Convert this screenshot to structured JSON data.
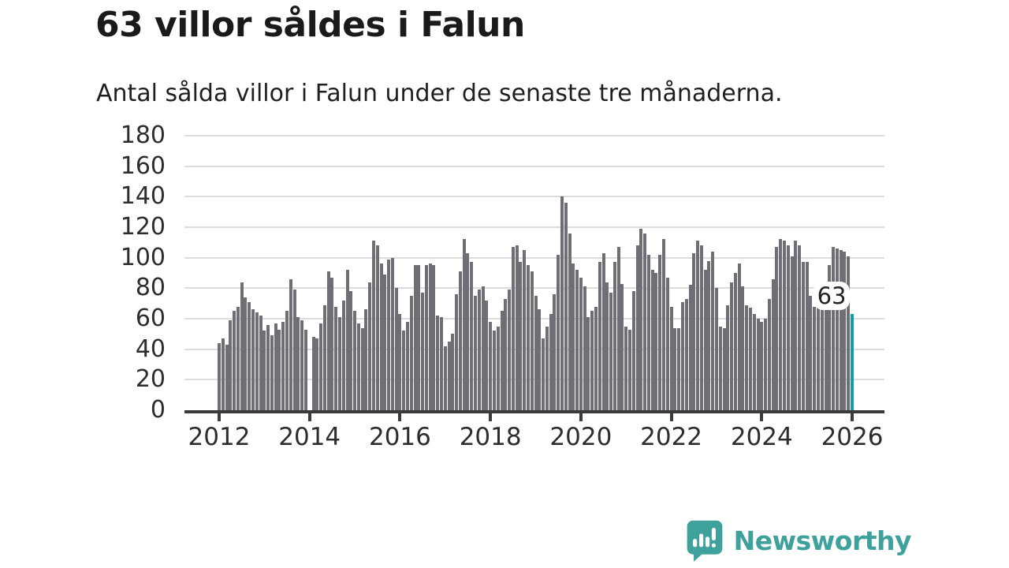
{
  "title": "63 villor såldes i Falun",
  "subtitle": "Antal sålda villor i Falun under de senaste tre månaderna.",
  "highlight_label": "63",
  "branding": {
    "name": "Newsworthy",
    "icon": "newsworthy-speech-bubble-chart-icon",
    "color": "#3ea19c"
  },
  "colors": {
    "bar": "#6e6e74",
    "highlight": "#0aa0a6",
    "grid": "#dcdcdc",
    "axis": "#3b3b3b",
    "text": "#2d2d2d"
  },
  "chart_data": {
    "type": "bar",
    "title": "63 villor såldes i Falun",
    "subtitle": "Antal sålda villor i Falun under de senaste tre månaderna.",
    "xlabel": "",
    "ylabel": "",
    "ylim": [
      0,
      180
    ],
    "grid": true,
    "legend": "none",
    "x_start": "2012-01",
    "x_end": "2026-01",
    "x_tick_labels": [
      "2012",
      "2014",
      "2016",
      "2018",
      "2020",
      "2022",
      "2024",
      "2026"
    ],
    "x_tick_every_n_bars": 24,
    "y_tick_labels": [
      "0",
      "20",
      "40",
      "60",
      "80",
      "100",
      "120",
      "140",
      "160",
      "180"
    ],
    "highlight": {
      "index": 168,
      "value": 63,
      "label": "63"
    },
    "values": [
      44,
      47,
      43,
      59,
      65,
      68,
      84,
      74,
      71,
      66,
      64,
      62,
      52,
      56,
      49,
      57,
      53,
      58,
      65,
      86,
      79,
      61,
      59,
      53,
      0,
      48,
      47,
      57,
      69,
      91,
      87,
      68,
      61,
      72,
      92,
      78,
      65,
      57,
      54,
      66,
      84,
      111,
      108,
      96,
      89,
      99,
      100,
      80,
      63,
      52,
      58,
      75,
      95,
      95,
      77,
      95,
      96,
      95,
      62,
      61,
      42,
      45,
      50,
      76,
      91,
      112,
      103,
      97,
      75,
      79,
      81,
      72,
      58,
      52,
      55,
      65,
      73,
      79,
      107,
      108,
      97,
      105,
      95,
      91,
      75,
      66,
      47,
      55,
      63,
      76,
      102,
      140,
      136,
      116,
      96,
      92,
      87,
      81,
      61,
      65,
      68,
      97,
      103,
      84,
      77,
      97,
      107,
      83,
      55,
      53,
      78,
      108,
      119,
      116,
      102,
      92,
      90,
      102,
      112,
      87,
      68,
      54,
      54,
      71,
      73,
      82,
      103,
      111,
      108,
      92,
      98,
      104,
      80,
      55,
      54,
      69,
      84,
      90,
      96,
      81,
      69,
      67,
      63,
      60,
      58,
      60,
      73,
      86,
      107,
      112,
      111,
      108,
      101,
      111,
      108,
      97,
      97,
      75,
      68,
      67,
      67,
      78,
      95,
      107,
      106,
      105,
      104,
      101,
      63
    ]
  }
}
